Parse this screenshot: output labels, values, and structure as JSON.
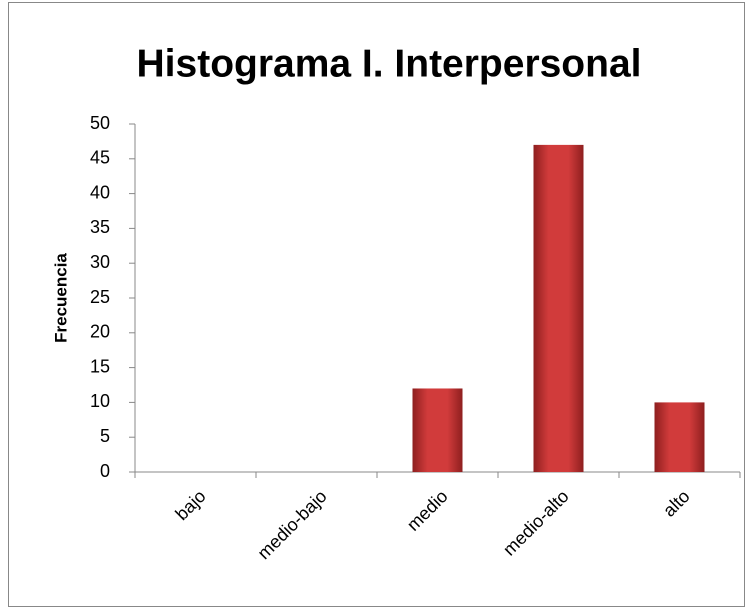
{
  "chart_data": {
    "type": "bar",
    "title": "Histograma I. Interpersonal",
    "y_label": "Frecuencia",
    "categories": [
      "bajo",
      "medio-bajo",
      "medio",
      "medio-alto",
      "alto"
    ],
    "values": [
      0,
      0,
      12,
      47,
      10
    ],
    "color": "#d13b3b",
    "ylim": [
      0,
      50
    ],
    "yticks": [
      0,
      5,
      10,
      15,
      20,
      25,
      30,
      35,
      40,
      45,
      50
    ],
    "grid": false
  }
}
